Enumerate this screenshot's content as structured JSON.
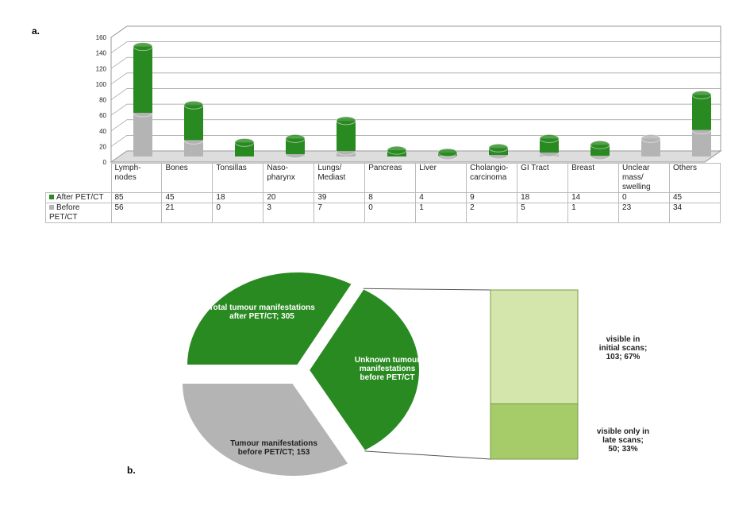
{
  "chart_data": [
    {
      "type": "bar",
      "panel": "a.",
      "stacked": true,
      "categories": [
        "Lymph-\nnodes",
        "Bones",
        "Tonsillas",
        "Naso-\npharynx",
        "Lungs/\nMediast",
        "Pancreas",
        "Liver",
        "Cholangio-\ncarcinoma",
        "GI Tract",
        "Breast",
        "Unclear\nmass/\nswelling",
        "Others"
      ],
      "series": [
        {
          "name": "After PET/CT",
          "color": "#2a8a22",
          "values": [
            85,
            45,
            18,
            20,
            39,
            8,
            4,
            9,
            18,
            14,
            0,
            45
          ]
        },
        {
          "name": "Before PET/CT",
          "color": "#b4b4b4",
          "values": [
            56,
            21,
            0,
            3,
            7,
            0,
            1,
            2,
            5,
            1,
            23,
            34
          ]
        }
      ],
      "ylim": [
        0,
        160
      ],
      "yticks": [
        0,
        20,
        40,
        60,
        80,
        100,
        120,
        140,
        160
      ],
      "grid": true
    },
    {
      "type": "pie-of-bar",
      "panel": "b.",
      "pie": {
        "values": [
          152,
          153,
          153
        ],
        "colors": [
          "#2a8a22",
          "#2a8a22",
          "#b4b4b4"
        ],
        "annotations": [
          "Total tumour manifestations\nafter PET/CT; 305",
          "Unknown tumour\nmanifestations\nbefore PET/CT",
          "Tumour manifestations\nbefore PET/CT; 153"
        ]
      },
      "bar": {
        "values": [
          103,
          50
        ],
        "colors": [
          "#d5e6ad",
          "#a6cc69"
        ],
        "annotations": [
          "visible in\ninitial scans;\n103; 67%",
          "visible only in\nlate scans;\n50; 33%"
        ]
      }
    }
  ]
}
